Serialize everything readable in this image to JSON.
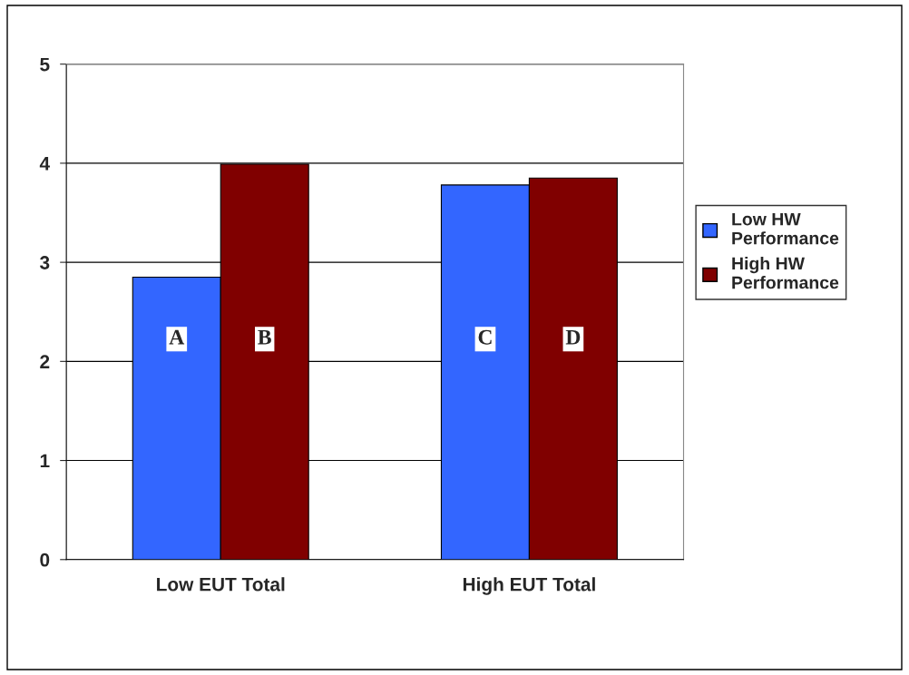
{
  "chart_data": {
    "type": "bar",
    "categories": [
      "Low EUT Total",
      "High EUT Total"
    ],
    "series": [
      {
        "name": "Low HW Performance",
        "color": "#3366ff",
        "values": [
          2.85,
          3.78
        ]
      },
      {
        "name": "High HW Performance",
        "color": "#800000",
        "values": [
          3.99,
          3.85
        ]
      }
    ],
    "ylim": [
      0,
      5
    ],
    "yticks": [
      0,
      1,
      2,
      3,
      4,
      5
    ],
    "grid": "y",
    "legend": "right",
    "annotations": [
      "A",
      "B",
      "C",
      "D"
    ]
  }
}
